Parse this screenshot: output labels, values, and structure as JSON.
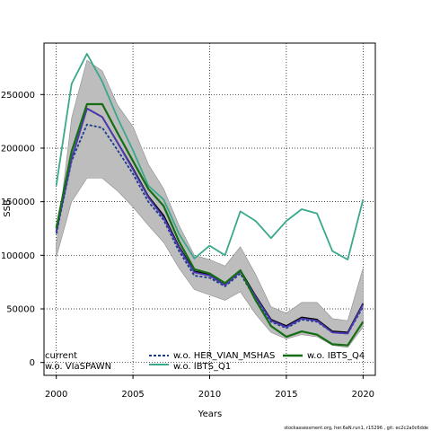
{
  "chart_data": {
    "type": "line",
    "title": "",
    "xlabel": "Years",
    "ylabel": "SSB",
    "xlim": [
      1999.2,
      2020.8
    ],
    "ylim": [
      -12000,
      298000
    ],
    "xticks": [
      2000,
      2005,
      2010,
      2015,
      2020
    ],
    "yticks": [
      0,
      50000,
      100000,
      150000,
      200000,
      250000
    ],
    "xtick_labels": [
      "2000",
      "2005",
      "2010",
      "2015",
      "2020"
    ],
    "ytick_labels": [
      "0",
      "50000",
      "100000",
      "150000",
      "200000",
      "250000"
    ],
    "grid": true,
    "legend_position": "bottom",
    "x": [
      2000,
      2001,
      2002,
      2003,
      2004,
      2005,
      2006,
      2007,
      2008,
      2009,
      2010,
      2011,
      2012,
      2013,
      2014,
      2015,
      2016,
      2017,
      2018,
      2019,
      2020
    ],
    "band": {
      "upper": [
        110000,
        228000,
        282000,
        272000,
        240000,
        220000,
        185000,
        162000,
        128000,
        100000,
        96000,
        90000,
        108000,
        82000,
        52000,
        46000,
        56000,
        56000,
        41000,
        39000,
        88000
      ],
      "lower": [
        98000,
        150000,
        172000,
        172000,
        160000,
        145000,
        128000,
        112000,
        88000,
        68000,
        63000,
        58000,
        66000,
        45000,
        28000,
        22000,
        26000,
        24000,
        16000,
        14000,
        33000
      ]
    },
    "series": [
      {
        "name": "current",
        "color": "#000000",
        "style": "solid",
        "values": [
          122000,
          190000,
          237000,
          229000,
          205000,
          181000,
          155000,
          137000,
          108000,
          85000,
          82000,
          73000,
          86000,
          62000,
          40000,
          34000,
          42000,
          40000,
          29000,
          28000,
          55000
        ]
      },
      {
        "name": "w.o. VIaSPAWN",
        "color": "#4d3ab5",
        "style": "solid",
        "values": [
          122000,
          190000,
          237000,
          229000,
          205000,
          180000,
          154000,
          135000,
          107000,
          84000,
          81000,
          72000,
          85000,
          61000,
          39000,
          33000,
          41000,
          39000,
          28000,
          27000,
          54000
        ]
      },
      {
        "name": "w.o. HER_VIAN_MSHAS",
        "color": "#1a3a8c",
        "style": "dashed",
        "values": [
          120000,
          188000,
          222000,
          219000,
          198000,
          176000,
          150000,
          133000,
          104000,
          81000,
          79000,
          71000,
          83000,
          59000,
          38000,
          32000,
          40000,
          38000,
          28000,
          27000,
          52000
        ]
      },
      {
        "name": "w.o. IBTS_Q1",
        "color": "#3aa88c",
        "style": "solid",
        "values": [
          165000,
          260000,
          288000,
          262000,
          228000,
          198000,
          165000,
          152000,
          120000,
          97000,
          109000,
          100000,
          141000,
          132000,
          116000,
          132000,
          143000,
          139000,
          104000,
          96000,
          152000
        ]
      },
      {
        "name": "w.o. IBTS_Q4",
        "color": "#146e14",
        "style": "solid",
        "values": [
          125000,
          197000,
          241000,
          241000,
          214000,
          188000,
          162000,
          146000,
          113000,
          87000,
          83000,
          74000,
          86000,
          58000,
          34000,
          24000,
          29000,
          26000,
          17000,
          16000,
          38000
        ]
      }
    ]
  },
  "legend": {
    "col1": [
      "current",
      "w.o. VIaSPAWN"
    ],
    "col2": [
      "w.o. HER_VIAN_MSHAS",
      "w.o. IBTS_Q1"
    ],
    "col3": [
      "w.o. IBTS_Q4"
    ]
  },
  "footer": "stockassessment.org, her.6aN.run1, r15296 , git: ec2c2a0c6dde"
}
